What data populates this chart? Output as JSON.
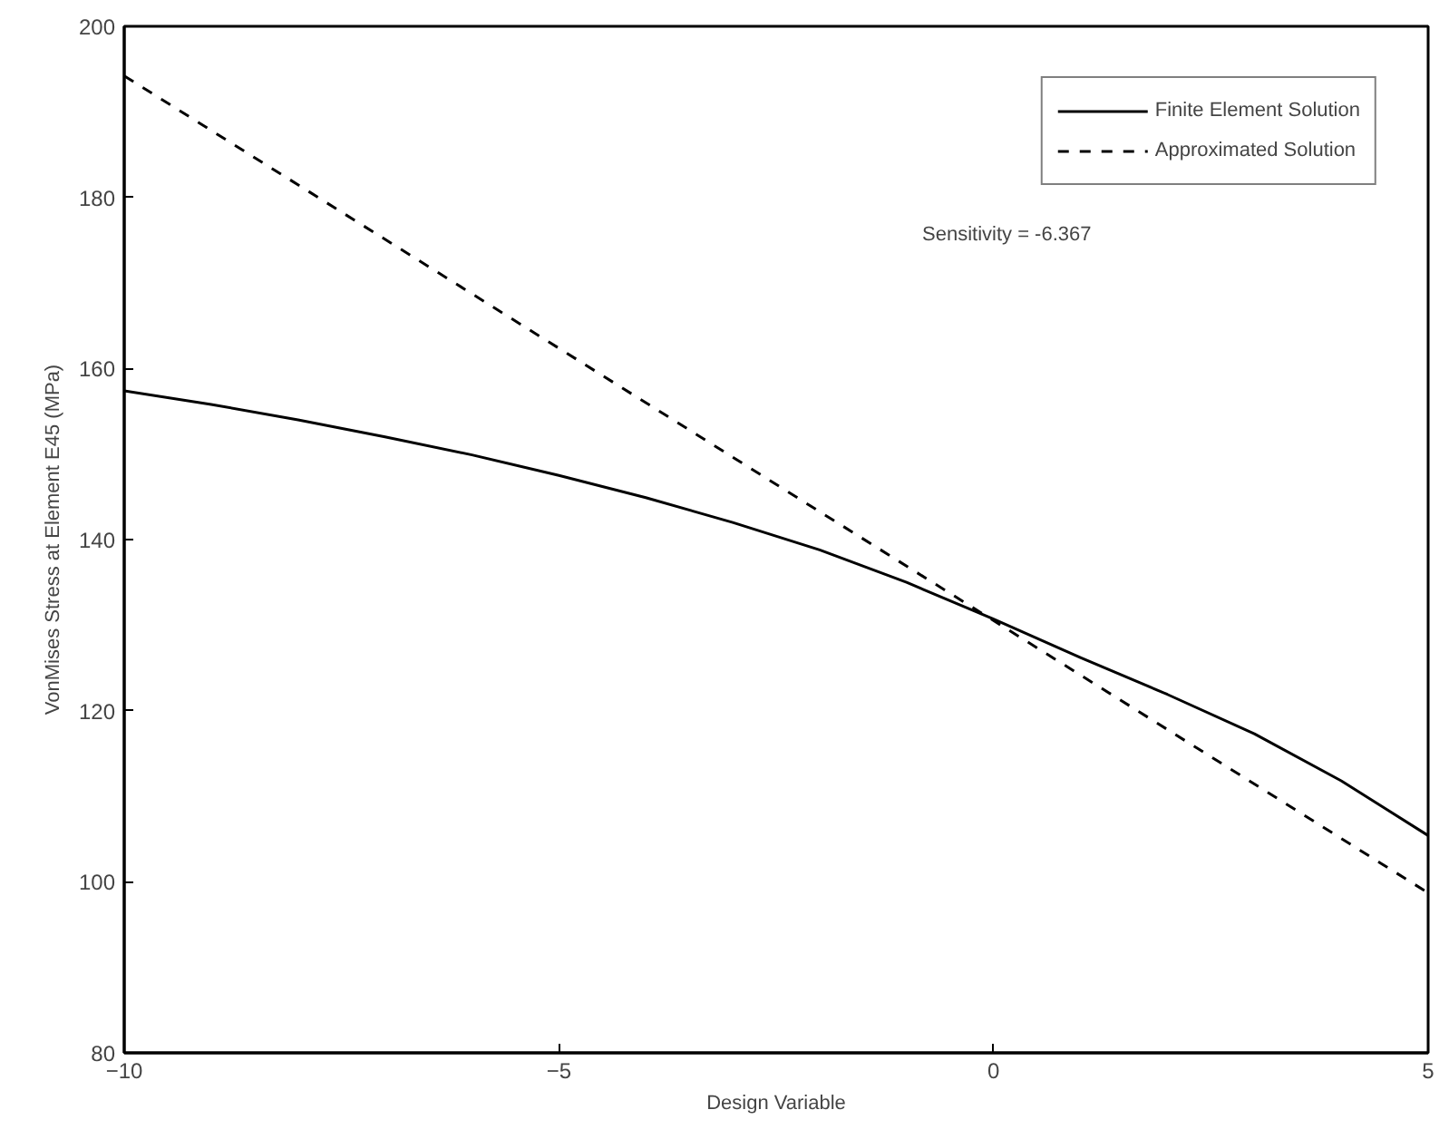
{
  "chart_data": {
    "type": "line",
    "xlabel": "Design Variable",
    "ylabel": "VonMises Stress at Element E45 (MPa)",
    "xlim": [
      -10,
      5
    ],
    "ylim": [
      80,
      200
    ],
    "xticks": [
      -10,
      -5,
      0,
      5
    ],
    "yticks": [
      80,
      100,
      120,
      140,
      160,
      180,
      200
    ],
    "grid": false,
    "legend": "top right",
    "annotations": [
      "Sensitivity = -6.367"
    ],
    "series": [
      {
        "name": "Finite Element Solution",
        "color": "#000000",
        "line_style": "solid",
        "x": [
          -10,
          -9,
          -8,
          -7,
          -6,
          -5,
          -4,
          -3,
          -2,
          -1,
          0,
          1,
          2,
          3,
          4,
          5
        ],
        "values": [
          157.4,
          155.8,
          154.0,
          152.0,
          149.9,
          147.5,
          144.9,
          142.0,
          138.8,
          135.0,
          130.7,
          126.2,
          121.9,
          117.3,
          111.8,
          105.4
        ]
      },
      {
        "name": "Approximated Solution",
        "color": "#000000",
        "line_style": "dashed",
        "x": [
          -10,
          5
        ],
        "values": [
          194.2,
          98.7
        ]
      }
    ]
  }
}
